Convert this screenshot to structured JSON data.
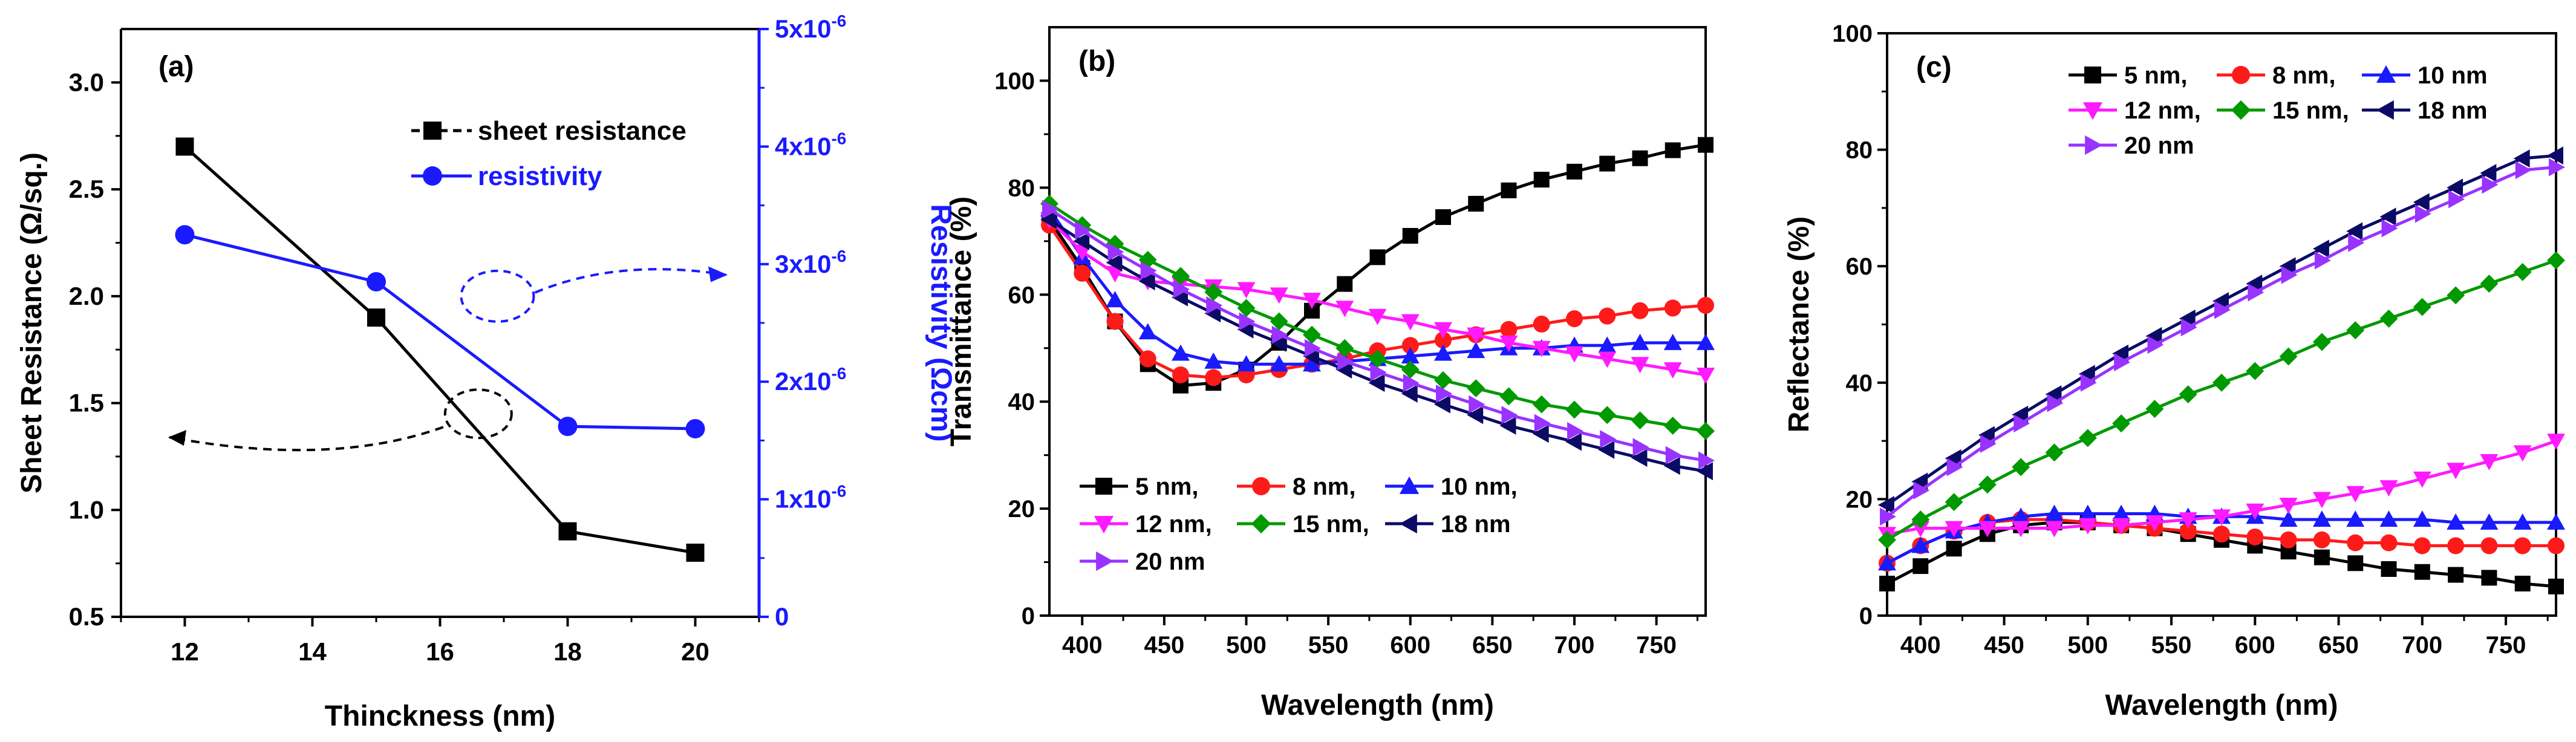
{
  "panels": [
    {
      "panel_label": "(a)",
      "type": "line",
      "xlabel": "Thinckness (nm)",
      "ylabel": "Sheet Resistance (Ω/sq.)",
      "y2label": "Resistivity (Ωcm)",
      "xlim": [
        11,
        21
      ],
      "ylim": [
        0.5,
        3.25
      ],
      "y2lim": [
        0,
        5e-06
      ],
      "xticks": [
        "12",
        "14",
        "16",
        "18",
        "20"
      ],
      "yticks": [
        "0.5",
        "1.0",
        "1.5",
        "2.0",
        "2.5",
        "3.0"
      ],
      "y2ticks": [
        {
          "base": "0",
          "exp": ""
        },
        {
          "base": "1x10",
          "exp": "-6"
        },
        {
          "base": "2x10",
          "exp": "-6"
        },
        {
          "base": "3x10",
          "exp": "-6"
        },
        {
          "base": "4x10",
          "exp": "-6"
        },
        {
          "base": "5x10",
          "exp": "-6"
        }
      ],
      "series": [
        {
          "name": "sheet resistance",
          "axis": "left",
          "color": "#000000",
          "marker": "square",
          "x": [
            12,
            15,
            18,
            20
          ],
          "values": [
            2.7,
            1.9,
            0.9,
            0.8
          ]
        },
        {
          "name": "resistivity",
          "axis": "right",
          "color": "#1a1aff",
          "marker": "circle",
          "x": [
            12,
            15,
            18,
            20
          ],
          "values": [
            3.25e-06,
            2.85e-06,
            1.62e-06,
            1.6e-06
          ]
        }
      ],
      "annotations": "dashed ellipses with arrows pointing to corresponding axes"
    },
    {
      "panel_label": "(b)",
      "type": "line",
      "xlabel": "Wavelength (nm)",
      "ylabel": "Transmittance (%)",
      "xlim": [
        380,
        780
      ],
      "ylim": [
        0,
        110
      ],
      "xticks": [
        "400",
        "450",
        "500",
        "550",
        "600",
        "650",
        "700",
        "750"
      ],
      "yticks": [
        "0",
        "20",
        "40",
        "60",
        "80",
        "100"
      ],
      "legend_labels": [
        "5 nm,",
        "8 nm,",
        "10 nm,",
        "12 nm,",
        "15 nm,",
        "18 nm",
        "20 nm"
      ],
      "series": [
        {
          "name": "5 nm",
          "color": "#000000",
          "marker": "square",
          "x": [
            380,
            400,
            420,
            440,
            460,
            480,
            500,
            520,
            540,
            560,
            580,
            600,
            620,
            640,
            660,
            680,
            700,
            720,
            740,
            760,
            780
          ],
          "values": [
            74,
            65,
            55,
            47,
            43,
            43.5,
            46,
            51,
            57,
            62,
            67,
            71,
            74.5,
            77,
            79.5,
            81.5,
            83,
            84.5,
            85.5,
            87,
            88
          ]
        },
        {
          "name": "8 nm",
          "color": "#ff1a1a",
          "marker": "circle",
          "x": [
            380,
            400,
            420,
            440,
            460,
            480,
            500,
            520,
            540,
            560,
            580,
            600,
            620,
            640,
            660,
            680,
            700,
            720,
            740,
            760,
            780
          ],
          "values": [
            73,
            64,
            55,
            48,
            45,
            44.5,
            45,
            46,
            47,
            48,
            49.5,
            50.5,
            51.5,
            52.5,
            53.5,
            54.5,
            55.5,
            56,
            57,
            57.5,
            58
          ]
        },
        {
          "name": "10 nm",
          "color": "#1a1aff",
          "marker": "triangle-up",
          "x": [
            380,
            400,
            420,
            440,
            460,
            480,
            500,
            520,
            540,
            560,
            580,
            600,
            620,
            640,
            660,
            680,
            700,
            720,
            740,
            760,
            780
          ],
          "values": [
            76,
            67,
            59,
            53,
            49,
            47.5,
            47,
            47,
            47,
            47.5,
            48,
            48.5,
            49,
            49.5,
            50,
            50,
            50.5,
            50.5,
            51,
            51,
            51
          ]
        },
        {
          "name": "12 nm",
          "color": "#ff1aff",
          "marker": "triangle-down",
          "x": [
            380,
            400,
            420,
            440,
            460,
            480,
            500,
            520,
            540,
            560,
            580,
            600,
            620,
            640,
            660,
            680,
            700,
            720,
            740,
            760,
            780
          ],
          "values": [
            74,
            68,
            64,
            62.5,
            62,
            61.5,
            61,
            60,
            59,
            57.5,
            56,
            55,
            53.5,
            52.5,
            51,
            50,
            49,
            48,
            47,
            46,
            45
          ]
        },
        {
          "name": "15 nm",
          "color": "#009900",
          "marker": "diamond",
          "x": [
            380,
            400,
            420,
            440,
            460,
            480,
            500,
            520,
            540,
            560,
            580,
            600,
            620,
            640,
            660,
            680,
            700,
            720,
            740,
            760,
            780
          ],
          "values": [
            77,
            73,
            69.5,
            66.5,
            63.5,
            60.5,
            57.5,
            55,
            52.5,
            50,
            48,
            46,
            44,
            42.5,
            41,
            39.5,
            38.5,
            37.5,
            36.5,
            35.5,
            34.5
          ]
        },
        {
          "name": "18 nm",
          "color": "#0b0b66",
          "marker": "triangle-left",
          "x": [
            380,
            400,
            420,
            440,
            460,
            480,
            500,
            520,
            540,
            560,
            580,
            600,
            620,
            640,
            660,
            680,
            700,
            720,
            740,
            760,
            780
          ],
          "values": [
            74,
            70,
            66,
            62.5,
            59.5,
            56.5,
            53.5,
            51,
            48.5,
            46,
            43.5,
            41.5,
            39.5,
            37.5,
            35.5,
            34,
            32.5,
            31,
            29.5,
            28,
            27
          ]
        },
        {
          "name": "20 nm",
          "color": "#9933ff",
          "marker": "triangle-right",
          "x": [
            380,
            400,
            420,
            440,
            460,
            480,
            500,
            520,
            540,
            560,
            580,
            600,
            620,
            640,
            660,
            680,
            700,
            720,
            740,
            760,
            780
          ],
          "values": [
            76,
            72,
            68,
            64.5,
            61,
            58,
            55,
            52.5,
            50,
            47.5,
            45.5,
            43.5,
            41.5,
            39.5,
            37.5,
            36,
            34.5,
            33,
            31.5,
            30,
            29
          ]
        }
      ]
    },
    {
      "panel_label": "(c)",
      "type": "line",
      "xlabel": "Wavelength (nm)",
      "ylabel": "Reflectance (%)",
      "xlim": [
        380,
        780
      ],
      "ylim": [
        0,
        100
      ],
      "xticks": [
        "400",
        "450",
        "500",
        "550",
        "600",
        "650",
        "700",
        "750"
      ],
      "yticks": [
        "0",
        "20",
        "40",
        "60",
        "80",
        "100"
      ],
      "legend_labels": [
        "5 nm,",
        "8 nm,",
        "10 nm",
        "12 nm,",
        "15 nm,",
        "18 nm",
        "20 nm"
      ],
      "series": [
        {
          "name": "5 nm",
          "color": "#000000",
          "marker": "square",
          "x": [
            380,
            400,
            420,
            440,
            460,
            480,
            500,
            520,
            540,
            560,
            580,
            600,
            620,
            640,
            660,
            680,
            700,
            720,
            740,
            760,
            780
          ],
          "values": [
            5.5,
            8.5,
            11.5,
            14,
            15.5,
            16,
            16,
            15.5,
            15,
            14,
            13,
            12,
            11,
            10,
            9,
            8,
            7.5,
            7,
            6.5,
            5.5,
            5
          ]
        },
        {
          "name": "8 nm",
          "color": "#ff1a1a",
          "marker": "circle",
          "x": [
            380,
            400,
            420,
            440,
            460,
            480,
            500,
            520,
            540,
            560,
            580,
            600,
            620,
            640,
            660,
            680,
            700,
            720,
            740,
            760,
            780
          ],
          "values": [
            9,
            12,
            14.5,
            16,
            16.5,
            16.5,
            16,
            15.5,
            15,
            14.5,
            14,
            13.5,
            13,
            13,
            12.5,
            12.5,
            12,
            12,
            12,
            12,
            12
          ]
        },
        {
          "name": "10 nm",
          "color": "#1a1aff",
          "marker": "triangle-up",
          "x": [
            380,
            400,
            420,
            440,
            460,
            480,
            500,
            520,
            540,
            560,
            580,
            600,
            620,
            640,
            660,
            680,
            700,
            720,
            740,
            760,
            780
          ],
          "values": [
            9,
            12,
            14.5,
            16,
            17,
            17.5,
            17.5,
            17.5,
            17.5,
            17,
            17,
            17,
            16.5,
            16.5,
            16.5,
            16.5,
            16.5,
            16,
            16,
            16,
            16
          ]
        },
        {
          "name": "12 nm",
          "color": "#ff1aff",
          "marker": "triangle-down",
          "x": [
            380,
            400,
            420,
            440,
            460,
            480,
            500,
            520,
            540,
            560,
            580,
            600,
            620,
            640,
            660,
            680,
            700,
            720,
            740,
            760,
            780
          ],
          "values": [
            14,
            15,
            15,
            15,
            15,
            15,
            15.5,
            15.5,
            16,
            16.5,
            17,
            18,
            19,
            20,
            21,
            22,
            23.5,
            25,
            26.5,
            28,
            30
          ]
        },
        {
          "name": "15 nm",
          "color": "#009900",
          "marker": "diamond",
          "x": [
            380,
            400,
            420,
            440,
            460,
            480,
            500,
            520,
            540,
            560,
            580,
            600,
            620,
            640,
            660,
            680,
            700,
            720,
            740,
            760,
            780
          ],
          "values": [
            13,
            16.5,
            19.5,
            22.5,
            25.5,
            28,
            30.5,
            33,
            35.5,
            38,
            40,
            42,
            44.5,
            47,
            49,
            51,
            53,
            55,
            57,
            59,
            61
          ]
        },
        {
          "name": "18 nm",
          "color": "#0b0b66",
          "marker": "triangle-left",
          "x": [
            380,
            400,
            420,
            440,
            460,
            480,
            500,
            520,
            540,
            560,
            580,
            600,
            620,
            640,
            660,
            680,
            700,
            720,
            740,
            760,
            780
          ],
          "values": [
            19,
            23,
            27,
            31,
            34.5,
            38,
            41.5,
            45,
            48,
            51,
            54,
            57,
            60,
            63,
            66,
            68.5,
            71,
            73.5,
            76,
            78.5,
            79
          ]
        },
        {
          "name": "20 nm",
          "color": "#9933ff",
          "marker": "triangle-right",
          "x": [
            380,
            400,
            420,
            440,
            460,
            480,
            500,
            520,
            540,
            560,
            580,
            600,
            620,
            640,
            660,
            680,
            700,
            720,
            740,
            760,
            780
          ],
          "values": [
            17,
            21.5,
            25.5,
            29.5,
            33,
            36.5,
            40,
            43.5,
            46.5,
            49.5,
            52.5,
            55.5,
            58.5,
            61,
            64,
            66.5,
            69,
            71.5,
            74,
            76.5,
            77
          ]
        }
      ]
    }
  ],
  "chart_data": [
    {
      "type": "line",
      "title": "(a)",
      "xlabel": "Thinckness (nm)",
      "ylabel": "Sheet Resistance (Ω/sq.)",
      "y2label": "Resistivity (Ωcm)",
      "xlim": [
        11,
        21
      ],
      "ylim": [
        0.5,
        3.25
      ],
      "y2lim": [
        0,
        5e-06
      ],
      "legend": "top-right",
      "series": [
        {
          "name": "sheet resistance",
          "axis": "left",
          "x": [
            12,
            15,
            18,
            20
          ],
          "values": [
            2.7,
            1.9,
            0.9,
            0.8
          ]
        },
        {
          "name": "resistivity",
          "axis": "right",
          "x": [
            12,
            15,
            18,
            20
          ],
          "values": [
            3.25e-06,
            2.85e-06,
            1.62e-06,
            1.6e-06
          ]
        }
      ]
    },
    {
      "type": "line",
      "title": "(b)",
      "xlabel": "Wavelength (nm)",
      "ylabel": "Transmittance (%)",
      "xlim": [
        380,
        780
      ],
      "ylim": [
        0,
        110
      ],
      "legend": "bottom-left",
      "series_names": [
        "5 nm",
        "8 nm",
        "10 nm",
        "12 nm",
        "15 nm",
        "18 nm",
        "20 nm"
      ]
    },
    {
      "type": "line",
      "title": "(c)",
      "xlabel": "Wavelength (nm)",
      "ylabel": "Reflectance (%)",
      "xlim": [
        380,
        780
      ],
      "ylim": [
        0,
        100
      ],
      "legend": "top-left",
      "series_names": [
        "5 nm",
        "8 nm",
        "10 nm",
        "12 nm",
        "15 nm",
        "18 nm",
        "20 nm"
      ]
    }
  ]
}
